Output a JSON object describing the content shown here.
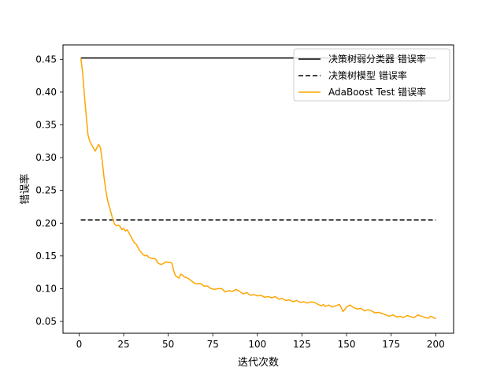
{
  "chart_data": {
    "type": "line",
    "title": "",
    "xlabel": "迭代次数",
    "ylabel": "错误率",
    "xlim": [
      -9,
      210
    ],
    "ylim": [
      0.032,
      0.472
    ],
    "xticks": [
      0,
      25,
      50,
      75,
      100,
      125,
      150,
      175,
      200
    ],
    "xtick_labels": [
      "0",
      "25",
      "50",
      "75",
      "100",
      "125",
      "150",
      "175",
      "200"
    ],
    "yticks": [
      0.05,
      0.1,
      0.15,
      0.2,
      0.25,
      0.3,
      0.35,
      0.4,
      0.45
    ],
    "ytick_labels": [
      "0.05",
      "0.10",
      "0.15",
      "0.20",
      "0.25",
      "0.30",
      "0.35",
      "0.40",
      "0.45"
    ],
    "grid": false,
    "legend_position": "top-right",
    "series": [
      {
        "name": "决策树弱分类器 错误率",
        "color": "#000000",
        "style": "solid",
        "x": [
          1,
          200
        ],
        "y": [
          0.452,
          0.452
        ]
      },
      {
        "name": "决策树模型 错误率",
        "color": "#000000",
        "style": "dashed",
        "x": [
          1,
          200
        ],
        "y": [
          0.205,
          0.205
        ]
      },
      {
        "name": "AdaBoost Test 错误率",
        "color": "#FFA500",
        "style": "solid",
        "x": [
          1,
          2,
          3,
          4,
          5,
          6,
          7,
          8,
          9,
          10,
          11,
          12,
          13,
          14,
          15,
          16,
          17,
          18,
          19,
          20,
          21,
          22,
          23,
          24,
          25,
          26,
          27,
          28,
          29,
          30,
          31,
          32,
          33,
          34,
          35,
          36,
          37,
          38,
          39,
          40,
          41,
          42,
          43,
          44,
          45,
          46,
          47,
          48,
          49,
          50,
          51,
          52,
          53,
          54,
          55,
          56,
          57,
          58,
          59,
          60,
          61,
          62,
          63,
          64,
          65,
          66,
          67,
          68,
          69,
          70,
          72,
          74,
          76,
          78,
          80,
          82,
          84,
          86,
          88,
          90,
          92,
          94,
          96,
          98,
          100,
          102,
          104,
          106,
          108,
          110,
          112,
          114,
          116,
          118,
          120,
          122,
          124,
          126,
          128,
          130,
          132,
          134,
          136,
          137,
          138,
          140,
          142,
          144,
          146,
          148,
          150,
          152,
          154,
          156,
          158,
          160,
          162,
          164,
          166,
          168,
          170,
          172,
          174,
          176,
          178,
          180,
          182,
          184,
          186,
          188,
          190,
          192,
          194,
          196,
          197,
          198,
          200
        ],
        "y": [
          0.452,
          0.43,
          0.395,
          0.365,
          0.335,
          0.325,
          0.32,
          0.315,
          0.31,
          0.315,
          0.32,
          0.315,
          0.295,
          0.27,
          0.25,
          0.235,
          0.225,
          0.215,
          0.205,
          0.198,
          0.196,
          0.197,
          0.195,
          0.19,
          0.192,
          0.188,
          0.19,
          0.185,
          0.18,
          0.175,
          0.17,
          0.168,
          0.163,
          0.158,
          0.155,
          0.152,
          0.15,
          0.151,
          0.148,
          0.147,
          0.146,
          0.146,
          0.145,
          0.14,
          0.138,
          0.137,
          0.138,
          0.14,
          0.141,
          0.14,
          0.14,
          0.139,
          0.128,
          0.12,
          0.118,
          0.116,
          0.122,
          0.121,
          0.118,
          0.117,
          0.116,
          0.114,
          0.112,
          0.11,
          0.108,
          0.107,
          0.108,
          0.108,
          0.106,
          0.104,
          0.104,
          0.1,
          0.099,
          0.1,
          0.1,
          0.095,
          0.097,
          0.096,
          0.099,
          0.096,
          0.092,
          0.094,
          0.09,
          0.091,
          0.089,
          0.09,
          0.087,
          0.088,
          0.086,
          0.088,
          0.084,
          0.085,
          0.082,
          0.083,
          0.08,
          0.082,
          0.079,
          0.08,
          0.078,
          0.08,
          0.079,
          0.076,
          0.074,
          0.076,
          0.073,
          0.075,
          0.072,
          0.074,
          0.076,
          0.065,
          0.072,
          0.075,
          0.071,
          0.069,
          0.07,
          0.066,
          0.068,
          0.066,
          0.063,
          0.064,
          0.062,
          0.06,
          0.058,
          0.06,
          0.057,
          0.058,
          0.056,
          0.059,
          0.057,
          0.056,
          0.06,
          0.058,
          0.056,
          0.055,
          0.058,
          0.057,
          0.054
        ]
      }
    ]
  }
}
